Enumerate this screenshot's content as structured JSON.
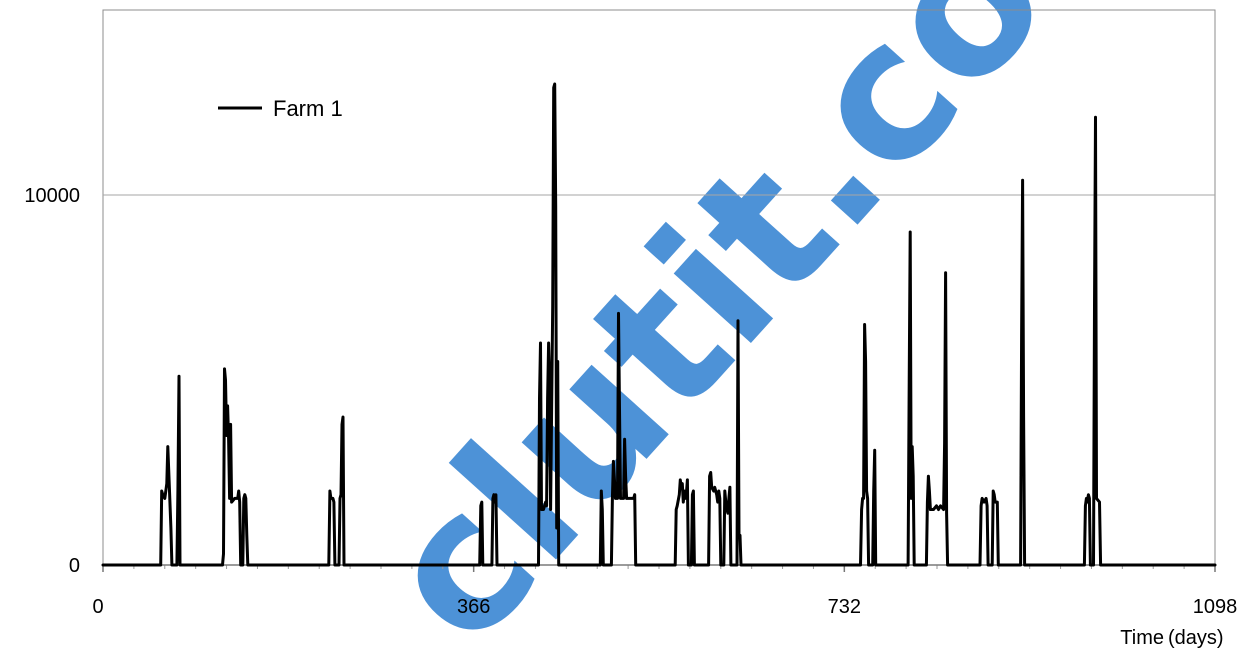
{
  "chart_data": {
    "type": "line",
    "title": "",
    "xlabel": "Time",
    "xlabel_unit": "(days)",
    "ylabel": "",
    "xlim": [
      0,
      1098
    ],
    "ylim": [
      0,
      15000
    ],
    "x_ticks": [
      0,
      366,
      732,
      1098
    ],
    "x_tick_labels": [
      "0",
      "366",
      "732",
      "1098"
    ],
    "y_ticks": [
      0,
      10000
    ],
    "y_tick_labels": [
      "0",
      "10000"
    ],
    "grid": "horizontal",
    "legend": {
      "position": "top-left"
    },
    "series": [
      {
        "name": "Farm 1",
        "color": "#000000",
        "points": [
          [
            0,
            0
          ],
          [
            57,
            0
          ],
          [
            58,
            2000
          ],
          [
            59,
            1900
          ],
          [
            61,
            1800
          ],
          [
            63,
            2200
          ],
          [
            64,
            3200
          ],
          [
            65,
            2500
          ],
          [
            67,
            1000
          ],
          [
            68,
            0
          ],
          [
            73,
            0
          ],
          [
            74,
            2000
          ],
          [
            75,
            5100
          ],
          [
            76,
            0
          ],
          [
            118,
            0
          ],
          [
            119,
            300
          ],
          [
            120,
            5300
          ],
          [
            121,
            5000
          ],
          [
            122,
            3500
          ],
          [
            123,
            4300
          ],
          [
            124,
            3400
          ],
          [
            125,
            1800
          ],
          [
            126,
            3800
          ],
          [
            127,
            1700
          ],
          [
            130,
            1800
          ],
          [
            133,
            1800
          ],
          [
            134,
            2000
          ],
          [
            135,
            1700
          ],
          [
            136,
            0
          ],
          [
            138,
            0
          ],
          [
            139,
            1800
          ],
          [
            140,
            1900
          ],
          [
            141,
            1800
          ],
          [
            142,
            800
          ],
          [
            143,
            0
          ],
          [
            223,
            0
          ],
          [
            224,
            2000
          ],
          [
            225,
            1800
          ],
          [
            227,
            1800
          ],
          [
            228,
            1700
          ],
          [
            229,
            0
          ],
          [
            233,
            0
          ],
          [
            234,
            1800
          ],
          [
            235,
            1900
          ],
          [
            236,
            3800
          ],
          [
            237,
            4000
          ],
          [
            238,
            0
          ],
          [
            372,
            0
          ],
          [
            373,
            1600
          ],
          [
            374,
            1700
          ],
          [
            375,
            0
          ],
          [
            384,
            0
          ],
          [
            385,
            1800
          ],
          [
            386,
            1900
          ],
          [
            387,
            1700
          ],
          [
            388,
            1900
          ],
          [
            389,
            0
          ],
          [
            430,
            0
          ],
          [
            431,
            4500
          ],
          [
            432,
            6000
          ],
          [
            433,
            1500
          ],
          [
            435,
            1500
          ],
          [
            437,
            1700
          ],
          [
            438,
            1600
          ],
          [
            439,
            4500
          ],
          [
            440,
            6000
          ],
          [
            441,
            5000
          ],
          [
            442,
            1500
          ],
          [
            444,
            7000
          ],
          [
            445,
            12900
          ],
          [
            446,
            13000
          ],
          [
            447,
            9700
          ],
          [
            448,
            1000
          ],
          [
            449,
            5500
          ],
          [
            450,
            0
          ],
          [
            491,
            0
          ],
          [
            492,
            2000
          ],
          [
            493,
            1500
          ],
          [
            494,
            0
          ],
          [
            502,
            0
          ],
          [
            503,
            1800
          ],
          [
            504,
            2800
          ],
          [
            506,
            1800
          ],
          [
            508,
            1800
          ],
          [
            509,
            6800
          ],
          [
            510,
            4200
          ],
          [
            511,
            1800
          ],
          [
            514,
            1800
          ],
          [
            515,
            3400
          ],
          [
            516,
            2400
          ],
          [
            517,
            1800
          ],
          [
            520,
            1800
          ],
          [
            524,
            1800
          ],
          [
            525,
            1900
          ],
          [
            526,
            0
          ],
          [
            565,
            0
          ],
          [
            566,
            1500
          ],
          [
            567,
            1600
          ],
          [
            569,
            1900
          ],
          [
            570,
            2300
          ],
          [
            571,
            2100
          ],
          [
            572,
            2200
          ],
          [
            573,
            1700
          ],
          [
            574,
            2000
          ],
          [
            575,
            1800
          ],
          [
            576,
            1900
          ],
          [
            577,
            2300
          ],
          [
            578,
            0
          ],
          [
            581,
            0
          ],
          [
            582,
            1900
          ],
          [
            583,
            2000
          ],
          [
            584,
            0
          ],
          [
            598,
            0
          ],
          [
            599,
            2400
          ],
          [
            600,
            2500
          ],
          [
            601,
            2100
          ],
          [
            603,
            2000
          ],
          [
            604,
            2100
          ],
          [
            605,
            2000
          ],
          [
            606,
            1900
          ],
          [
            607,
            1700
          ],
          [
            608,
            2000
          ],
          [
            609,
            1800
          ],
          [
            610,
            0
          ],
          [
            613,
            0
          ],
          [
            614,
            2000
          ],
          [
            615,
            1700
          ],
          [
            616,
            1500
          ],
          [
            617,
            1400
          ],
          [
            618,
            1800
          ],
          [
            619,
            2100
          ],
          [
            620,
            0
          ],
          [
            626,
            0
          ],
          [
            627,
            6600
          ],
          [
            628,
            800
          ],
          [
            629,
            800
          ],
          [
            630,
            0
          ],
          [
            748,
            0
          ],
          [
            749,
            1500
          ],
          [
            750,
            1800
          ],
          [
            751,
            1800
          ],
          [
            752,
            6500
          ],
          [
            753,
            5500
          ],
          [
            754,
            2000
          ],
          [
            755,
            1800
          ],
          [
            756,
            0
          ],
          [
            760,
            0
          ],
          [
            761,
            2000
          ],
          [
            762,
            3100
          ],
          [
            763,
            0
          ],
          [
            795,
            0
          ],
          [
            796,
            4500
          ],
          [
            797,
            9000
          ],
          [
            798,
            1800
          ],
          [
            799,
            3200
          ],
          [
            800,
            2400
          ],
          [
            801,
            0
          ],
          [
            813,
            0
          ],
          [
            814,
            1700
          ],
          [
            815,
            2400
          ],
          [
            816,
            2000
          ],
          [
            817,
            1500
          ],
          [
            820,
            1500
          ],
          [
            823,
            1600
          ],
          [
            825,
            1500
          ],
          [
            827,
            1600
          ],
          [
            830,
            1500
          ],
          [
            831,
            3300
          ],
          [
            832,
            7900
          ],
          [
            833,
            1400
          ],
          [
            834,
            0
          ],
          [
            866,
            0
          ],
          [
            867,
            1600
          ],
          [
            868,
            1800
          ],
          [
            870,
            1700
          ],
          [
            872,
            1800
          ],
          [
            873,
            1600
          ],
          [
            874,
            0
          ],
          [
            878,
            0
          ],
          [
            879,
            2000
          ],
          [
            880,
            1900
          ],
          [
            881,
            1700
          ],
          [
            882,
            1700
          ],
          [
            883,
            1700
          ],
          [
            884,
            0
          ],
          [
            906,
            0
          ],
          [
            907,
            6200
          ],
          [
            908,
            10400
          ],
          [
            909,
            4000
          ],
          [
            910,
            0
          ],
          [
            969,
            0
          ],
          [
            970,
            1600
          ],
          [
            971,
            1800
          ],
          [
            972,
            1700
          ],
          [
            973,
            1900
          ],
          [
            974,
            1800
          ],
          [
            975,
            0
          ],
          [
            978,
            0
          ],
          [
            979,
            7000
          ],
          [
            980,
            12100
          ],
          [
            981,
            1800
          ],
          [
            984,
            1700
          ],
          [
            985,
            0
          ],
          [
            1098,
            0
          ]
        ]
      }
    ]
  },
  "watermark": {
    "text": "clutit.com",
    "color": "#2f7fd1"
  }
}
